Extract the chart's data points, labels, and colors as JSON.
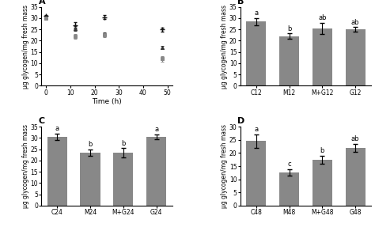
{
  "panel_A": {
    "label": "A",
    "series": [
      {
        "marker": "+",
        "color": "#111111",
        "times": [
          0,
          12,
          24,
          48
        ],
        "means": [
          31,
          27,
          30.5,
          25
        ],
        "errors": [
          0.5,
          1.2,
          1.0,
          0.8
        ]
      },
      {
        "marker": "^",
        "color": "#333333",
        "times": [
          0,
          12,
          24,
          48
        ],
        "means": [
          30.5,
          25.5,
          23,
          17
        ],
        "errors": [
          0.5,
          1.0,
          0.8,
          0.8
        ]
      },
      {
        "marker": "s",
        "color": "#999999",
        "times": [
          0,
          12,
          24,
          48
        ],
        "means": [
          30,
          22,
          22.5,
          12
        ],
        "errors": [
          0.5,
          1.0,
          0.8,
          1.2
        ]
      }
    ],
    "xlabel": "Time (h)",
    "ylabel": "μg glycogen/mg fresh mass",
    "xlim": [
      -2,
      52
    ],
    "xticks": [
      0,
      10,
      20,
      30,
      40,
      50
    ],
    "ylim": [
      0,
      35
    ],
    "yticks": [
      0,
      5,
      10,
      15,
      20,
      25,
      30,
      35
    ]
  },
  "panel_B": {
    "label": "B",
    "categories": [
      "C12",
      "M12",
      "M+G12",
      "G12"
    ],
    "means": [
      28.5,
      22,
      25.5,
      25
    ],
    "errors": [
      1.5,
      1.2,
      2.5,
      1.0
    ],
    "sig_labels": [
      "a",
      "b",
      "ab",
      "ab"
    ],
    "bar_color": "#888888",
    "ylabel": "μg glycogen/mg fresh mass",
    "ylim": [
      0,
      35
    ],
    "yticks": [
      0,
      5,
      10,
      15,
      20,
      25,
      30,
      35
    ]
  },
  "panel_C": {
    "label": "C",
    "categories": [
      "C24",
      "M24",
      "M+G24",
      "G24"
    ],
    "means": [
      30.5,
      23.5,
      23.5,
      30.5
    ],
    "errors": [
      1.5,
      1.5,
      2.0,
      1.0
    ],
    "sig_labels": [
      "a",
      "b",
      "b",
      "a"
    ],
    "bar_color": "#888888",
    "ylabel": "μg glycogen/mg fresh mass",
    "ylim": [
      0,
      35
    ],
    "yticks": [
      0,
      5,
      10,
      15,
      20,
      25,
      30,
      35
    ]
  },
  "panel_D": {
    "label": "D",
    "categories": [
      "C48",
      "M48",
      "M+G48",
      "G48"
    ],
    "means": [
      24.5,
      12.5,
      17.5,
      22
    ],
    "errors": [
      2.5,
      1.2,
      1.5,
      1.5
    ],
    "sig_labels": [
      "a",
      "c",
      "b",
      "ab"
    ],
    "bar_color": "#888888",
    "ylabel": "μg glycogen/mg fresh mass",
    "ylim": [
      0,
      30
    ],
    "yticks": [
      0,
      5,
      10,
      15,
      20,
      25,
      30
    ]
  },
  "bar_width": 0.6,
  "font_size": 6.5,
  "label_font_size": 8,
  "sig_font_size": 6,
  "fig_bg": "#ffffff"
}
